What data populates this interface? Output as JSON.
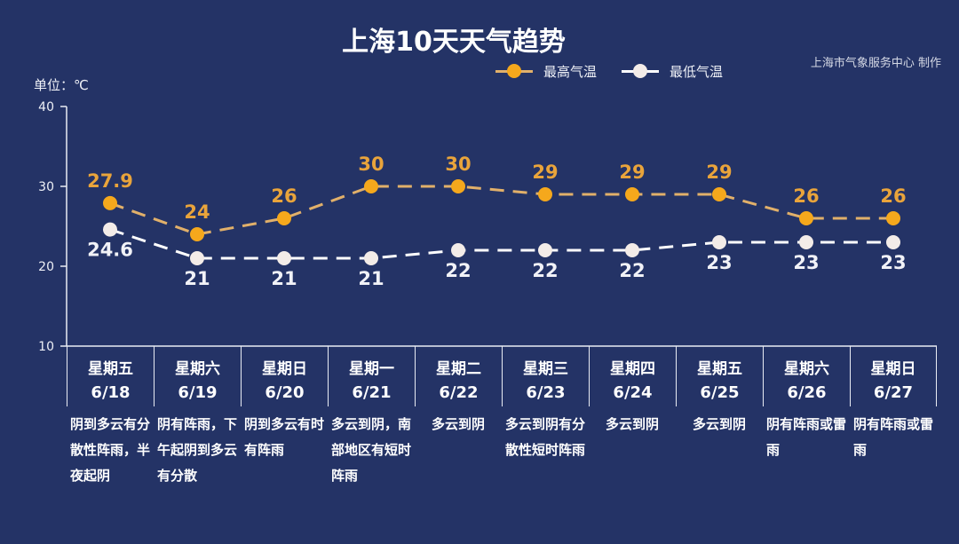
{
  "header": {
    "title": "上海10天天气趋势",
    "credit": "上海市气象服务中心 制作",
    "unit_label": "单位：℃"
  },
  "legend": [
    {
      "label": "最高气温",
      "color": "#F5A81C",
      "line_color": "#E1B06A"
    },
    {
      "label": "最低气温",
      "color": "#F3ECE8",
      "line_color": "#FFFFFF"
    }
  ],
  "days": [
    {
      "weekday": "星期五",
      "date": "6/18",
      "desc": "阴到多云有分散性阵雨，半夜起阴"
    },
    {
      "weekday": "星期六",
      "date": "6/19",
      "desc": "阴有阵雨，下午起阴到多云有分散"
    },
    {
      "weekday": "星期日",
      "date": "6/20",
      "desc": "阴到多云有时有阵雨"
    },
    {
      "weekday": "星期一",
      "date": "6/21",
      "desc": "多云到阴，南部地区有短时阵雨"
    },
    {
      "weekday": "星期二",
      "date": "6/22",
      "desc": "多云到阴"
    },
    {
      "weekday": "星期三",
      "date": "6/23",
      "desc": "多云到阴有分散性短时阵雨"
    },
    {
      "weekday": "星期四",
      "date": "6/24",
      "desc": "多云到阴"
    },
    {
      "weekday": "星期五",
      "date": "6/25",
      "desc": "多云到阴"
    },
    {
      "weekday": "星期六",
      "date": "6/26",
      "desc": "阴有阵雨或雷雨"
    },
    {
      "weekday": "星期日",
      "date": "6/27",
      "desc": "阴有阵雨或雷雨"
    }
  ],
  "chart_data": {
    "type": "line",
    "title": "上海10天天气趋势",
    "xlabel": "",
    "ylabel": "单位：℃",
    "categories": [
      "6/18",
      "6/19",
      "6/20",
      "6/21",
      "6/22",
      "6/23",
      "6/24",
      "6/25",
      "6/26",
      "6/27"
    ],
    "series": [
      {
        "name": "最高气温",
        "values": [
          27.9,
          24,
          26,
          30,
          30,
          29,
          29,
          29,
          26,
          26
        ],
        "color": "#F5A81C",
        "line_style": "dashed"
      },
      {
        "name": "最低气温",
        "values": [
          24.6,
          21,
          21,
          21,
          22,
          22,
          22,
          23,
          23,
          23
        ],
        "color": "#F3ECE8",
        "line_style": "dashed"
      }
    ],
    "yticks": [
      10,
      20,
      30,
      40
    ],
    "ylim": [
      10,
      40
    ],
    "grid": false,
    "legend_position": "top"
  }
}
